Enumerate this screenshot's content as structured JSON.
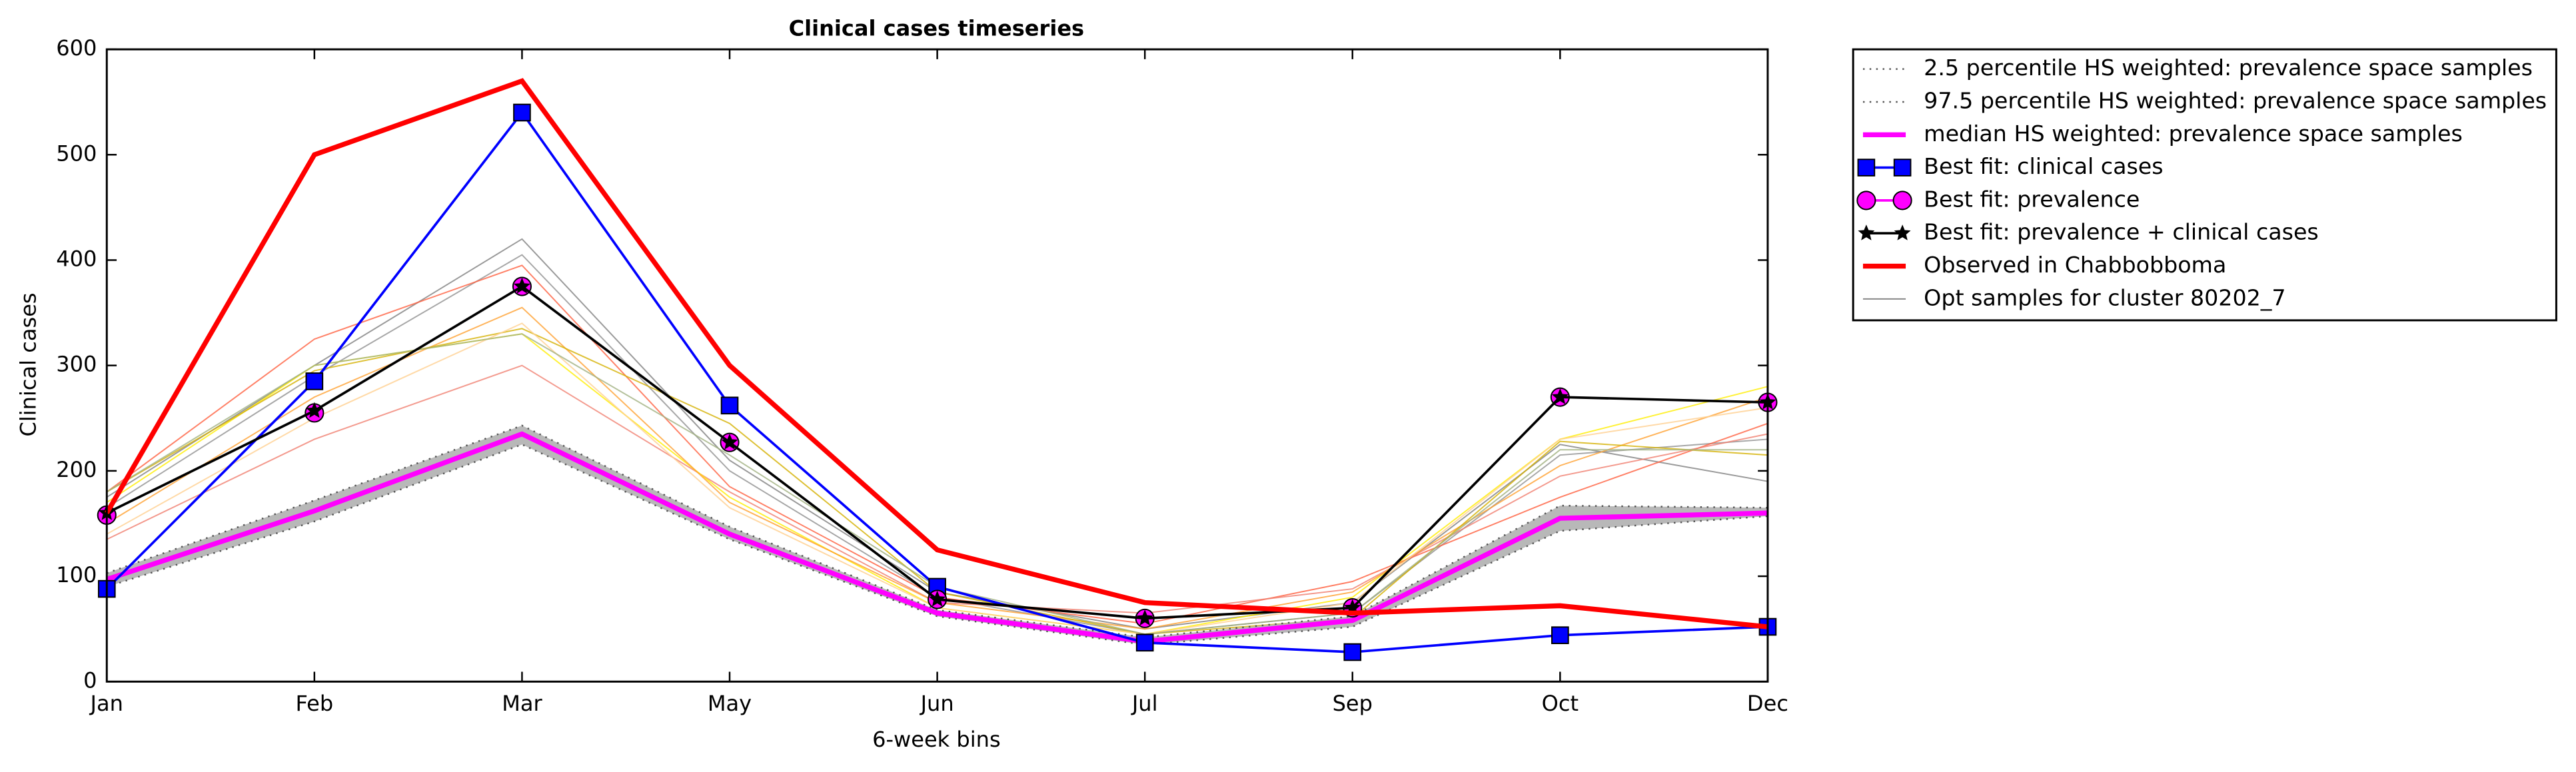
{
  "chart_data": {
    "type": "line",
    "title": "Clinical cases timeseries",
    "xlabel": "6-week bins",
    "ylabel": "Clinical cases",
    "categories": [
      "Jan",
      "Feb",
      "Mar",
      "May",
      "Jun",
      "Jul",
      "Sep",
      "Oct",
      "Dec"
    ],
    "ylim": [
      0,
      600
    ],
    "yticks": [
      0,
      100,
      200,
      300,
      400,
      500,
      600
    ],
    "band_color": "#b0b0b0",
    "samples": {
      "name": "Opt samples for cluster 80202_7",
      "color": "#808080",
      "lines": [
        {
          "color": "#808080",
          "values": [
            175,
            300,
            420,
            210,
            85,
            50,
            75,
            225,
            190
          ]
        },
        {
          "color": "#909090",
          "values": [
            165,
            290,
            405,
            200,
            80,
            45,
            65,
            215,
            230
          ]
        },
        {
          "color": "#ff6040",
          "values": [
            180,
            325,
            395,
            185,
            80,
            55,
            95,
            175,
            245
          ]
        },
        {
          "color": "#f08070",
          "values": [
            135,
            230,
            300,
            180,
            75,
            65,
            88,
            195,
            235
          ]
        },
        {
          "color": "#ffee00",
          "values": [
            170,
            300,
            330,
            175,
            70,
            45,
            80,
            230,
            280
          ]
        },
        {
          "color": "#ffa030",
          "values": [
            150,
            270,
            355,
            170,
            75,
            50,
            85,
            205,
            270
          ]
        },
        {
          "color": "#d4b000",
          "values": [
            180,
            295,
            335,
            245,
            85,
            45,
            60,
            228,
            215
          ]
        },
        {
          "color": "#ffd090",
          "values": [
            140,
            250,
            340,
            165,
            70,
            45,
            75,
            230,
            260
          ]
        },
        {
          "color": "#a0b080",
          "values": [
            180,
            300,
            330,
            215,
            90,
            45,
            65,
            220,
            220
          ]
        }
      ]
    },
    "series": [
      {
        "name": "2.5 percentile HS weighted: prevalence space samples",
        "color": "#555555",
        "style": "dotted",
        "width": 1,
        "values": [
          90,
          152,
          225,
          135,
          62,
          35,
          52,
          143,
          157
        ]
      },
      {
        "name": "97.5 percentile HS weighted: prevalence space samples",
        "color": "#555555",
        "style": "dotted",
        "width": 1,
        "values": [
          103,
          172,
          243,
          147,
          68,
          42,
          62,
          167,
          165
        ]
      },
      {
        "name": "median HS weighted: prevalence space samples",
        "color": "#ff00ff",
        "style": "solid",
        "width": 3,
        "values": [
          97,
          162,
          235,
          140,
          65,
          38,
          58,
          155,
          160
        ]
      },
      {
        "name": "Best fit: clinical cases",
        "color": "#0000ff",
        "style": "solid",
        "width": 1.5,
        "marker": "square",
        "values": [
          88,
          285,
          540,
          262,
          90,
          37,
          28,
          44,
          52
        ]
      },
      {
        "name": "Best fit: prevalence",
        "color": "#ff00ff",
        "style": "none",
        "width": 1.5,
        "marker": "circle",
        "values": [
          158,
          255,
          375,
          227,
          78,
          60,
          70,
          270,
          265
        ]
      },
      {
        "name": "Best fit: prevalence + clinical cases",
        "color": "#000000",
        "style": "solid",
        "width": 1.5,
        "marker": "star",
        "values": [
          160,
          257,
          375,
          227,
          78,
          60,
          70,
          270,
          265
        ]
      },
      {
        "name": "Observed in Chabbobboma",
        "color": "#ff0000",
        "style": "solid",
        "width": 3,
        "values": [
          160,
          500,
          570,
          300,
          125,
          75,
          65,
          72,
          52
        ]
      }
    ]
  }
}
